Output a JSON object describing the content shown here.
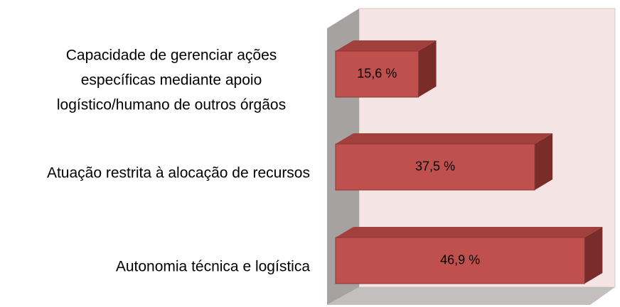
{
  "chart_data": {
    "type": "bar",
    "orientation": "horizontal",
    "categories": [
      "Capacidade de gerenciar ações específicas mediante apoio logístico/humano de outros órgãos",
      "Atuação restrita à alocação de recursos",
      "Autonomia técnica e logística"
    ],
    "values": [
      15.6,
      37.5,
      46.9
    ],
    "value_labels": [
      "15,6 %",
      "37,5 %",
      "46,9 %"
    ],
    "color": "#c0504d"
  }
}
